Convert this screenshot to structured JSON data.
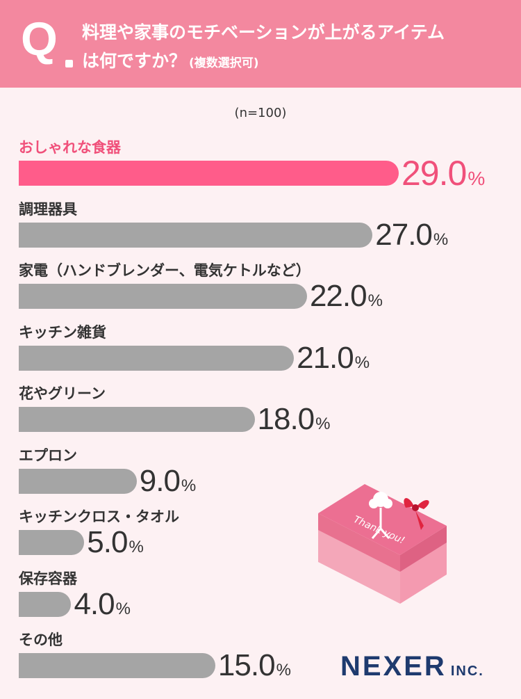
{
  "question": {
    "mark": "Q",
    "line1": "料理や家事のモチベーションが上がるアイテム",
    "line2": "は何ですか？",
    "note": "(複数選択可)"
  },
  "sample_size": "(n=100)",
  "chart_data": {
    "type": "bar",
    "orientation": "horizontal",
    "categories": [
      "おしゃれな食器",
      "調理器具",
      "家電（ハンドブレンダー、電気ケトルなど）",
      "キッチン雑貨",
      "花やグリーン",
      "エプロン",
      "キッチンクロス・タオル",
      "保存容器",
      "その他"
    ],
    "values": [
      29.0,
      27.0,
      22.0,
      21.0,
      18.0,
      9.0,
      5.0,
      4.0,
      15.0
    ],
    "value_labels": [
      "29.0",
      "27.0",
      "22.0",
      "21.0",
      "18.0",
      "9.0",
      "5.0",
      "4.0",
      "15.0"
    ],
    "unit": "%",
    "highlight_index": 0,
    "colors": {
      "highlight": "#ff5c8a",
      "default": "#a5a5a5",
      "highlight_text": "#f0507a"
    }
  },
  "gift": {
    "text": "Thank you!",
    "icon": "gift-box-icon"
  },
  "logo": {
    "main": "NEXER",
    "suffix": "INC."
  }
}
